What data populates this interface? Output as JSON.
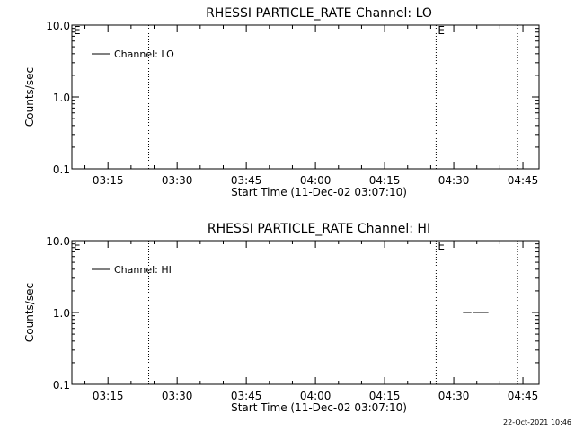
{
  "chart_data": [
    {
      "type": "line",
      "title": "RHESSI PARTICLE_RATE Channel: LO",
      "xlabel": "Start Time (11-Dec-02 03:07:10)",
      "ylabel": "Counts/sec",
      "y_scale": "log",
      "ylim": [
        0.1,
        10.0
      ],
      "y_ticks": [
        "10.0",
        "1.0",
        "0.1"
      ],
      "x_ticks": [
        "03:15",
        "03:30",
        "03:45",
        "04:00",
        "04:15",
        "04:30",
        "04:45"
      ],
      "xlim": [
        "03:07:10",
        "04:48:30"
      ],
      "series": [
        {
          "name": "Channel: LO",
          "segments": []
        }
      ],
      "markers": [
        {
          "time": "03:23:50",
          "label": ""
        },
        {
          "time": "04:26:10",
          "label": "E"
        },
        {
          "time": "04:43:50",
          "label": ""
        }
      ],
      "corner_label": "E",
      "legend_position": "top-left"
    },
    {
      "type": "line",
      "title": "RHESSI PARTICLE_RATE Channel: HI",
      "xlabel": "Start Time (11-Dec-02 03:07:10)",
      "ylabel": "Counts/sec",
      "y_scale": "log",
      "ylim": [
        0.1,
        10.0
      ],
      "y_ticks": [
        "10.0",
        "1.0",
        "0.1"
      ],
      "x_ticks": [
        "03:15",
        "03:30",
        "03:45",
        "04:00",
        "04:15",
        "04:30",
        "04:45"
      ],
      "xlim": [
        "03:07:10",
        "04:48:30"
      ],
      "series": [
        {
          "name": "Channel: HI",
          "segments": [
            {
              "x": [
                "04:32:00",
                "04:33:50"
              ],
              "y": [
                1.0,
                1.0
              ]
            },
            {
              "x": [
                "04:34:10",
                "04:37:30"
              ],
              "y": [
                1.0,
                1.0
              ]
            }
          ]
        }
      ],
      "markers": [
        {
          "time": "03:23:50",
          "label": ""
        },
        {
          "time": "04:26:10",
          "label": "E"
        },
        {
          "time": "04:43:50",
          "label": ""
        }
      ],
      "corner_label": "E",
      "legend_position": "top-left"
    }
  ],
  "footer": {
    "timestamp": "22-Oct-2021 10:46"
  }
}
